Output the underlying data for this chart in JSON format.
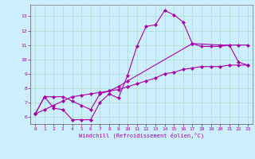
{
  "xlabel": "Windchill (Refroidissement éolien,°C)",
  "bg_color": "#cceeff",
  "grid_color": "#aaddcc",
  "line_color": "#aa00aa",
  "xlim": [
    -0.5,
    23.5
  ],
  "ylim": [
    5.5,
    13.8
  ],
  "xticks": [
    0,
    1,
    2,
    3,
    4,
    5,
    6,
    7,
    8,
    9,
    10,
    11,
    12,
    13,
    14,
    15,
    16,
    17,
    18,
    19,
    20,
    21,
    22,
    23
  ],
  "yticks": [
    6,
    7,
    8,
    9,
    10,
    11,
    12,
    13
  ],
  "curve1_x": [
    0,
    1,
    2,
    3,
    4,
    5,
    6,
    7,
    8,
    9,
    10,
    11,
    12,
    13,
    14,
    15,
    16,
    17,
    18,
    19,
    20,
    21,
    22,
    23
  ],
  "curve1_y": [
    6.2,
    7.4,
    6.6,
    6.5,
    5.8,
    5.8,
    5.8,
    7.0,
    7.6,
    7.3,
    8.9,
    10.9,
    12.3,
    12.4,
    13.4,
    13.1,
    12.6,
    11.1,
    10.9,
    10.9,
    10.9,
    11.0,
    9.8,
    9.6
  ],
  "curve2_x": [
    0,
    1,
    2,
    3,
    4,
    5,
    6,
    7,
    8,
    9,
    10,
    17,
    20,
    21,
    22,
    23
  ],
  "curve2_y": [
    6.2,
    7.4,
    7.4,
    7.4,
    7.1,
    6.8,
    6.5,
    7.6,
    7.8,
    8.1,
    8.5,
    11.1,
    11.0,
    11.0,
    11.0,
    11.0
  ],
  "curve3_x": [
    0,
    1,
    2,
    3,
    4,
    5,
    6,
    7,
    8,
    9,
    10,
    11,
    12,
    13,
    14,
    15,
    16,
    17,
    18,
    19,
    20,
    21,
    22,
    23
  ],
  "curve3_y": [
    6.2,
    6.5,
    6.8,
    7.1,
    7.4,
    7.5,
    7.6,
    7.7,
    7.8,
    7.9,
    8.1,
    8.3,
    8.5,
    8.7,
    9.0,
    9.1,
    9.3,
    9.4,
    9.5,
    9.5,
    9.5,
    9.6,
    9.6,
    9.6
  ]
}
